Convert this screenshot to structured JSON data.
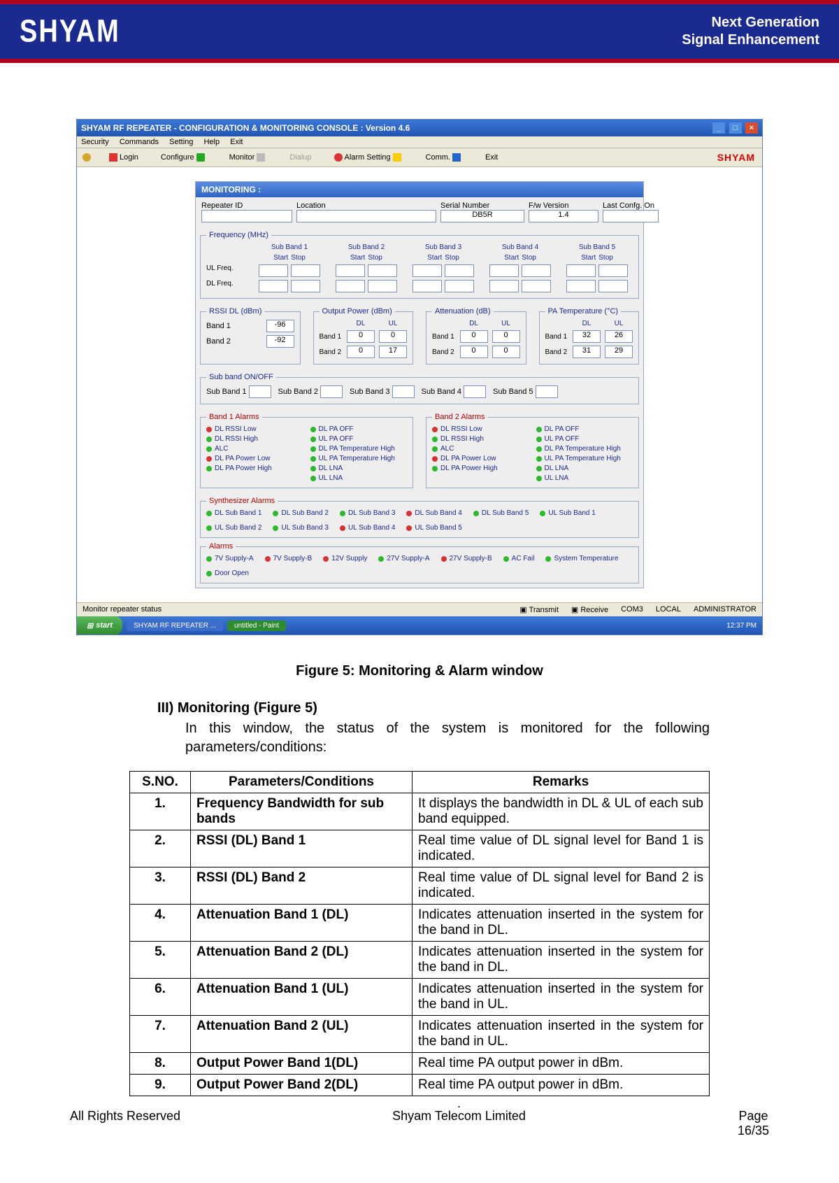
{
  "header": {
    "logo": "SHYAM",
    "line1": "Next Generation",
    "line2": "Signal Enhancement"
  },
  "window": {
    "title": "SHYAM RF REPEATER - CONFIGURATION & MONITORING CONSOLE  :  Version 4.6",
    "menus": [
      "Security",
      "Commands",
      "Setting",
      "Help",
      "Exit"
    ],
    "toolbar": {
      "login": "Login",
      "configure": "Configure",
      "monitor": "Monitor",
      "dialup": "Dialup",
      "alarm_setting": "Alarm Setting",
      "comm": "Comm.",
      "exit": "Exit",
      "brand": "SHYAM"
    }
  },
  "mon": {
    "title": "MONITORING :",
    "id_row": {
      "repeater_id": "Repeater ID",
      "location": "Location",
      "serial": "Serial Number",
      "serial_val": "DB5R",
      "fw": "F/w Version",
      "fw_val": "1.4",
      "last": "Last Confg. On"
    },
    "freq": {
      "legend": "Frequency (MHz)",
      "bands": [
        "Sub Band 1",
        "Sub Band 2",
        "Sub Band 3",
        "Sub Band 4",
        "Sub Band 5"
      ],
      "start": "Start",
      "stop": "Stop",
      "ul": "UL Freq.",
      "dl": "DL Freq."
    },
    "rssi": {
      "legend": "RSSI DL (dBm)",
      "b1": "Band 1",
      "b1v": "-96",
      "b2": "Band 2",
      "b2v": "-92"
    },
    "opwr": {
      "legend": "Output Power (dBm)",
      "dl": "DL",
      "ul": "UL",
      "b1": "Band 1",
      "b1dl": "0",
      "b1ul": "0",
      "b2": "Band 2",
      "b2dl": "0",
      "b2ul": "17"
    },
    "att": {
      "legend": "Attenuation (dB)",
      "dl": "DL",
      "ul": "UL",
      "b1": "Band 1",
      "b1dl": "0",
      "b1ul": "0",
      "b2": "Band 2",
      "b2dl": "0",
      "b2ul": "0"
    },
    "patemp": {
      "legend": "PA Temperature (°C)",
      "dl": "DL",
      "ul": "UL",
      "b1": "Band 1",
      "b1dl": "32",
      "b1ul": "26",
      "b2": "Band 2",
      "b2dl": "31",
      "b2ul": "29"
    },
    "subband": {
      "legend": "Sub band ON/OFF",
      "items": [
        "Sub Band 1",
        "Sub Band 2",
        "Sub Band 3",
        "Sub Band 4",
        "Sub Band 5"
      ]
    },
    "band1alarms": {
      "legend": "Band 1 Alarms",
      "left": [
        {
          "t": "DL RSSI Low",
          "c": "led-r"
        },
        {
          "t": "DL RSSI High",
          "c": "led-g"
        },
        {
          "t": "ALC",
          "c": "led-g"
        },
        {
          "t": "DL PA Power Low",
          "c": "led-r"
        },
        {
          "t": "DL PA Power High",
          "c": "led-g"
        }
      ],
      "right": [
        {
          "t": "DL PA OFF",
          "c": "led-g"
        },
        {
          "t": "UL PA OFF",
          "c": "led-g"
        },
        {
          "t": "DL PA Temperature High",
          "c": "led-g"
        },
        {
          "t": "UL PA Temperature High",
          "c": "led-g"
        },
        {
          "t": "DL LNA",
          "c": "led-g"
        },
        {
          "t": "UL LNA",
          "c": "led-g"
        }
      ]
    },
    "band2alarms": {
      "legend": "Band 2 Alarms",
      "left": [
        {
          "t": "DL RSSI Low",
          "c": "led-r"
        },
        {
          "t": "DL RSSI High",
          "c": "led-g"
        },
        {
          "t": "ALC",
          "c": "led-g"
        },
        {
          "t": "DL PA Power Low",
          "c": "led-r"
        },
        {
          "t": "DL PA Power High",
          "c": "led-g"
        }
      ],
      "right": [
        {
          "t": "DL PA OFF",
          "c": "led-g"
        },
        {
          "t": "UL PA OFF",
          "c": "led-g"
        },
        {
          "t": "DL PA Temperature High",
          "c": "led-g"
        },
        {
          "t": "UL PA Temperature High",
          "c": "led-g"
        },
        {
          "t": "DL LNA",
          "c": "led-g"
        },
        {
          "t": "UL LNA",
          "c": "led-g"
        }
      ]
    },
    "synth": {
      "legend": "Synthesizer Alarms",
      "items": [
        {
          "t": "DL Sub Band 1",
          "c": "led-g"
        },
        {
          "t": "DL Sub Band 2",
          "c": "led-g"
        },
        {
          "t": "DL Sub Band 3",
          "c": "led-g"
        },
        {
          "t": "DL Sub Band 4",
          "c": "led-r"
        },
        {
          "t": "DL Sub Band 5",
          "c": "led-g"
        },
        {
          "t": "UL Sub Band 1",
          "c": "led-g"
        },
        {
          "t": "UL Sub Band 2",
          "c": "led-g"
        },
        {
          "t": "UL Sub Band 3",
          "c": "led-g"
        },
        {
          "t": "UL Sub Band 4",
          "c": "led-r"
        },
        {
          "t": "UL Sub Band 5",
          "c": "led-r"
        }
      ]
    },
    "alarms": {
      "legend": "Alarms",
      "items": [
        {
          "t": "7V Supply-A",
          "c": "led-g"
        },
        {
          "t": "7V Supply-B",
          "c": "led-r"
        },
        {
          "t": "12V Supply",
          "c": "led-r"
        },
        {
          "t": "27V Supply-A",
          "c": "led-g"
        },
        {
          "t": "27V Supply-B",
          "c": "led-r"
        },
        {
          "t": "AC Fail",
          "c": "led-g"
        },
        {
          "t": "System Temperature",
          "c": "led-g"
        },
        {
          "t": "Door Open",
          "c": "led-g"
        }
      ]
    }
  },
  "status": {
    "left": "Monitor repeater status",
    "transmit": "Transmit",
    "receive": "Receive",
    "com": "COM3",
    "mode": "LOCAL",
    "role": "ADMINISTRATOR"
  },
  "taskbar": {
    "start": "start",
    "t1": "SHYAM RF REPEATER ...",
    "t2": "untitled - Paint",
    "clock": "12:37 PM"
  },
  "caption": "Figure 5: Monitoring & Alarm window",
  "section": {
    "heading": "III)  Monitoring (Figure 5)",
    "text": "In this window, the status of the system is monitored for the following parameters/conditions:"
  },
  "table": {
    "headers": [
      "S.NO.",
      "Parameters/Conditions",
      "Remarks"
    ],
    "rows": [
      {
        "n": "1.",
        "p": "Frequency Bandwidth for sub bands",
        "r": "It displays the bandwidth in DL & UL of each sub band equipped."
      },
      {
        "n": "2.",
        "p": "RSSI (DL) Band 1",
        "r": "Real time value of DL signal level for Band 1 is indicated."
      },
      {
        "n": "3.",
        "p": "RSSI (DL) Band 2",
        "r": "Real time value of DL signal level for Band 2 is indicated."
      },
      {
        "n": "4.",
        "p": "Attenuation Band 1 (DL)",
        "r": "Indicates attenuation inserted in the system for the band in DL."
      },
      {
        "n": "5.",
        "p": "Attenuation Band 2 (DL)",
        "r": "Indicates attenuation inserted in the system for the band in DL."
      },
      {
        "n": "6.",
        "p": "Attenuation Band 1 (UL)",
        "r": "Indicates attenuation inserted in the system for the band in UL."
      },
      {
        "n": "7.",
        "p": "Attenuation Band 2 (UL)",
        "r": "Indicates attenuation inserted in the system for the band in UL."
      },
      {
        "n": "8.",
        "p": "Output Power Band 1(DL)",
        "r": "Real time PA output power in dBm."
      },
      {
        "n": "9.",
        "p": "Output Power Band 2(DL)",
        "r": "Real time PA output power in dBm."
      }
    ]
  },
  "footer": {
    "left": "All Rights Reserved",
    "dot": ".",
    "mid": "Shyam Telecom Limited",
    "right_t": "Page",
    "right_b": "16/35"
  }
}
